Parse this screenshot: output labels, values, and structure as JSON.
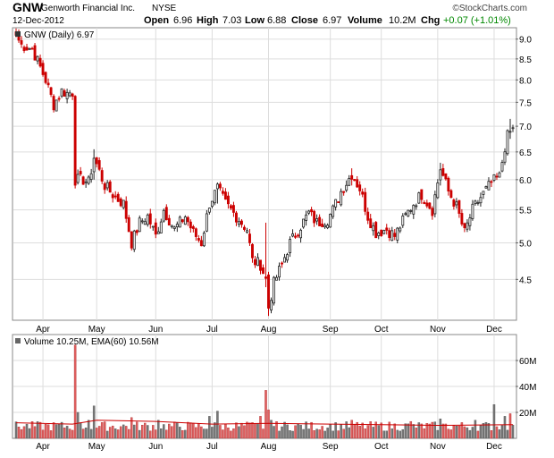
{
  "header": {
    "ticker": "GNW",
    "company": "Genworth Financial Inc.",
    "exchange": "NYSE",
    "date": "12-Dec-2012",
    "watermark": "©StockCharts.com",
    "quote": {
      "open_label": "Open",
      "open": "6.96",
      "high_label": "High",
      "high": "7.03",
      "low_label": "Low",
      "low": "6.88",
      "close_label": "Close",
      "close": "6.97",
      "volume_label": "Volume",
      "volume": "10.2M",
      "chg_label": "Chg",
      "chg": "+0.07 (+1.01%)"
    }
  },
  "price_panel": {
    "legend": "GNW (Daily) 6.97"
  },
  "volume_panel": {
    "legend": "Volume 10.25M, EMA(60) 10.56M"
  },
  "colors": {
    "up": "#222222",
    "down": "#cc0000",
    "vol_up": "#777777",
    "vol_down": "#e06060",
    "ema": "#cc0000",
    "grid": "#dddddd",
    "border": "#888888"
  },
  "chart_data": [
    {
      "type": "candlestick",
      "series": [
        {
          "name": "GNW (Daily)"
        }
      ],
      "y_scale": "log",
      "ylim": [
        4.0,
        9.3
      ],
      "y_ticks": [
        {
          "value": 9.0,
          "label": "9.0"
        },
        {
          "value": 8.5,
          "label": "8.5"
        },
        {
          "value": 8.0,
          "label": "8.0"
        },
        {
          "value": 7.5,
          "label": "7.5"
        },
        {
          "value": 7.0,
          "label": "7.0"
        },
        {
          "value": 6.5,
          "label": "6.5"
        },
        {
          "value": 6.0,
          "label": "6.0"
        },
        {
          "value": 5.5,
          "label": "5.5"
        },
        {
          "value": 5.0,
          "label": "5.0"
        },
        {
          "value": 4.5,
          "label": "4.5"
        }
      ],
      "x_ticks": [
        {
          "date": "2012-04-02",
          "label": "Apr"
        },
        {
          "date": "2012-05-01",
          "label": "May"
        },
        {
          "date": "2012-06-01",
          "label": "Jun"
        },
        {
          "date": "2012-07-02",
          "label": "Jul"
        },
        {
          "date": "2012-08-01",
          "label": "Aug"
        },
        {
          "date": "2012-09-04",
          "label": "Sep"
        },
        {
          "date": "2012-10-01",
          "label": "Oct"
        },
        {
          "date": "2012-11-01",
          "label": "Nov"
        },
        {
          "date": "2012-12-03",
          "label": "Dec"
        }
      ],
      "close_path": [
        {
          "date": "2012-03-19",
          "close": 9.1
        },
        {
          "date": "2012-03-21",
          "close": 8.85
        },
        {
          "date": "2012-03-27",
          "close": 8.75
        },
        {
          "date": "2012-03-30",
          "close": 8.3
        },
        {
          "date": "2012-04-03",
          "close": 8.0
        },
        {
          "date": "2012-04-09",
          "close": 7.45
        },
        {
          "date": "2012-04-12",
          "close": 7.75
        },
        {
          "date": "2012-04-16",
          "close": 7.7
        },
        {
          "date": "2012-04-18",
          "close": 7.72
        },
        {
          "date": "2012-04-19",
          "close": 6.0
        },
        {
          "date": "2012-04-24",
          "close": 6.0
        },
        {
          "date": "2012-04-26",
          "close": 5.95
        },
        {
          "date": "2012-04-30",
          "close": 6.4
        },
        {
          "date": "2012-05-04",
          "close": 5.9
        },
        {
          "date": "2012-05-10",
          "close": 5.7
        },
        {
          "date": "2012-05-15",
          "close": 5.6
        },
        {
          "date": "2012-05-18",
          "close": 5.0
        },
        {
          "date": "2012-05-23",
          "close": 5.3
        },
        {
          "date": "2012-05-29",
          "close": 5.4
        },
        {
          "date": "2012-06-01",
          "close": 5.1
        },
        {
          "date": "2012-06-06",
          "close": 5.5
        },
        {
          "date": "2012-06-12",
          "close": 5.2
        },
        {
          "date": "2012-06-18",
          "close": 5.4
        },
        {
          "date": "2012-06-21",
          "close": 5.15
        },
        {
          "date": "2012-06-26",
          "close": 5.0
        },
        {
          "date": "2012-06-29",
          "close": 5.6
        },
        {
          "date": "2012-07-05",
          "close": 5.85
        },
        {
          "date": "2012-07-10",
          "close": 5.6
        },
        {
          "date": "2012-07-16",
          "close": 5.4
        },
        {
          "date": "2012-07-20",
          "close": 5.2
        },
        {
          "date": "2012-07-24",
          "close": 4.75
        },
        {
          "date": "2012-07-27",
          "close": 4.7
        },
        {
          "date": "2012-07-31",
          "close": 4.5
        },
        {
          "date": "2012-08-01",
          "close": 4.15
        },
        {
          "date": "2012-08-03",
          "close": 4.45
        },
        {
          "date": "2012-08-08",
          "close": 4.7
        },
        {
          "date": "2012-08-13",
          "close": 5.0
        },
        {
          "date": "2012-08-17",
          "close": 5.25
        },
        {
          "date": "2012-08-22",
          "close": 5.45
        },
        {
          "date": "2012-08-27",
          "close": 5.3
        },
        {
          "date": "2012-08-31",
          "close": 5.35
        },
        {
          "date": "2012-09-05",
          "close": 5.5
        },
        {
          "date": "2012-09-10",
          "close": 5.8
        },
        {
          "date": "2012-09-14",
          "close": 6.1
        },
        {
          "date": "2012-09-19",
          "close": 5.85
        },
        {
          "date": "2012-09-24",
          "close": 5.4
        },
        {
          "date": "2012-09-27",
          "close": 5.15
        },
        {
          "date": "2012-10-03",
          "close": 5.2
        },
        {
          "date": "2012-10-08",
          "close": 5.1
        },
        {
          "date": "2012-10-12",
          "close": 5.4
        },
        {
          "date": "2012-10-17",
          "close": 5.6
        },
        {
          "date": "2012-10-22",
          "close": 5.75
        },
        {
          "date": "2012-10-26",
          "close": 5.5
        },
        {
          "date": "2012-11-02",
          "close": 6.2
        },
        {
          "date": "2012-11-07",
          "close": 5.8
        },
        {
          "date": "2012-11-12",
          "close": 5.55
        },
        {
          "date": "2012-11-15",
          "close": 5.15
        },
        {
          "date": "2012-11-20",
          "close": 5.5
        },
        {
          "date": "2012-11-26",
          "close": 5.7
        },
        {
          "date": "2012-11-30",
          "close": 5.95
        },
        {
          "date": "2012-12-05",
          "close": 6.05
        },
        {
          "date": "2012-12-07",
          "close": 6.6
        },
        {
          "date": "2012-12-10",
          "close": 6.8
        },
        {
          "date": "2012-12-12",
          "close": 6.97
        }
      ],
      "spikes": [
        {
          "date": "2012-04-19",
          "high": 6.6,
          "low": 5.85
        },
        {
          "date": "2012-04-30",
          "high": 6.55,
          "low": 6.0
        },
        {
          "date": "2012-07-05",
          "high": 5.95,
          "low": 5.6
        },
        {
          "date": "2012-07-31",
          "high": 5.3,
          "low": 4.4
        },
        {
          "date": "2012-08-01",
          "high": 4.6,
          "low": 4.05
        },
        {
          "date": "2012-09-14",
          "high": 6.2,
          "low": 5.9
        },
        {
          "date": "2012-11-02",
          "high": 6.3,
          "low": 5.9
        },
        {
          "date": "2012-12-11",
          "high": 7.15,
          "low": 6.75
        },
        {
          "date": "2012-12-12",
          "high": 7.03,
          "low": 6.88
        }
      ],
      "last": {
        "date": "2012-12-12",
        "open": 6.96,
        "high": 7.03,
        "low": 6.88,
        "close": 6.97
      }
    },
    {
      "type": "bar",
      "series": [
        {
          "name": "Volume"
        },
        {
          "name": "EMA(60)"
        }
      ],
      "ylim": [
        0,
        80
      ],
      "y_unit": "M",
      "y_ticks": [
        {
          "value": 60,
          "label": "60M"
        },
        {
          "value": 40,
          "label": "40M"
        },
        {
          "value": 20,
          "label": "20M"
        }
      ],
      "baseline_volume": 10,
      "volume_spikes": [
        {
          "date": "2012-04-19",
          "value": 72
        },
        {
          "date": "2012-04-20",
          "value": 20
        },
        {
          "date": "2012-04-26",
          "value": 14
        },
        {
          "date": "2012-04-30",
          "value": 25
        },
        {
          "date": "2012-05-18",
          "value": 16
        },
        {
          "date": "2012-06-04",
          "value": 14
        },
        {
          "date": "2012-06-29",
          "value": 17
        },
        {
          "date": "2012-07-05",
          "value": 21
        },
        {
          "date": "2012-07-27",
          "value": 17
        },
        {
          "date": "2012-07-31",
          "value": 37
        },
        {
          "date": "2012-08-01",
          "value": 22
        },
        {
          "date": "2012-08-02",
          "value": 14
        },
        {
          "date": "2012-09-14",
          "value": 14
        },
        {
          "date": "2012-10-16",
          "value": 13
        },
        {
          "date": "2012-11-02",
          "value": 15
        },
        {
          "date": "2012-11-21",
          "value": 14
        },
        {
          "date": "2012-12-03",
          "value": 26
        },
        {
          "date": "2012-12-07",
          "value": 17
        },
        {
          "date": "2012-12-11",
          "value": 19
        },
        {
          "date": "2012-12-12",
          "value": 10.25
        }
      ],
      "ema": [
        {
          "date": "2012-03-19",
          "value": 12
        },
        {
          "date": "2012-04-18",
          "value": 11
        },
        {
          "date": "2012-05-01",
          "value": 14
        },
        {
          "date": "2012-06-01",
          "value": 13
        },
        {
          "date": "2012-07-02",
          "value": 11
        },
        {
          "date": "2012-08-01",
          "value": 11.5
        },
        {
          "date": "2012-09-04",
          "value": 11
        },
        {
          "date": "2012-10-01",
          "value": 10.5
        },
        {
          "date": "2012-11-01",
          "value": 10
        },
        {
          "date": "2012-12-12",
          "value": 10.56
        }
      ]
    }
  ]
}
